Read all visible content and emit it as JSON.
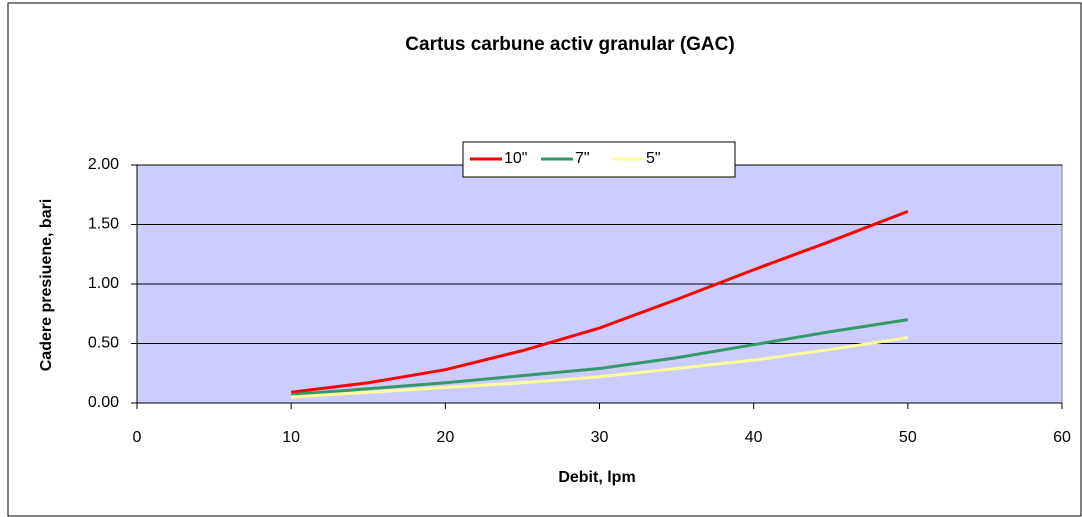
{
  "chart_data": {
    "type": "line",
    "title": "Cartus carbune activ granular (GAC)",
    "x_label": "Debit, lpm",
    "y_label": "Cadere presiuene, bari",
    "x": [
      10,
      15,
      20,
      25,
      30,
      35,
      40,
      45,
      50
    ],
    "series": [
      {
        "name": "10\"",
        "color": "#ff0000",
        "values": [
          0.09,
          0.17,
          0.28,
          0.44,
          0.63,
          0.87,
          1.12,
          1.36,
          1.61
        ]
      },
      {
        "name": "7\"",
        "color": "#339966",
        "values": [
          0.07,
          0.12,
          0.17,
          0.23,
          0.29,
          0.38,
          0.49,
          0.6,
          0.7
        ]
      },
      {
        "name": "5\"",
        "color": "#ffff99",
        "values": [
          0.05,
          0.09,
          0.13,
          0.17,
          0.22,
          0.29,
          0.36,
          0.45,
          0.55
        ]
      }
    ],
    "xlim": [
      0,
      60
    ],
    "xticks": [
      0,
      10,
      20,
      30,
      40,
      50,
      60
    ],
    "ylim": [
      0,
      2
    ],
    "yticks": [
      {
        "value": 0,
        "label": "0.00"
      },
      {
        "value": 0.5,
        "label": "0.50"
      },
      {
        "value": 1,
        "label": "1.00"
      },
      {
        "value": 1.5,
        "label": "1.50"
      },
      {
        "value": 2,
        "label": "2.00"
      }
    ],
    "grid": true,
    "plot_background": "#ccccff",
    "legend": "top"
  }
}
